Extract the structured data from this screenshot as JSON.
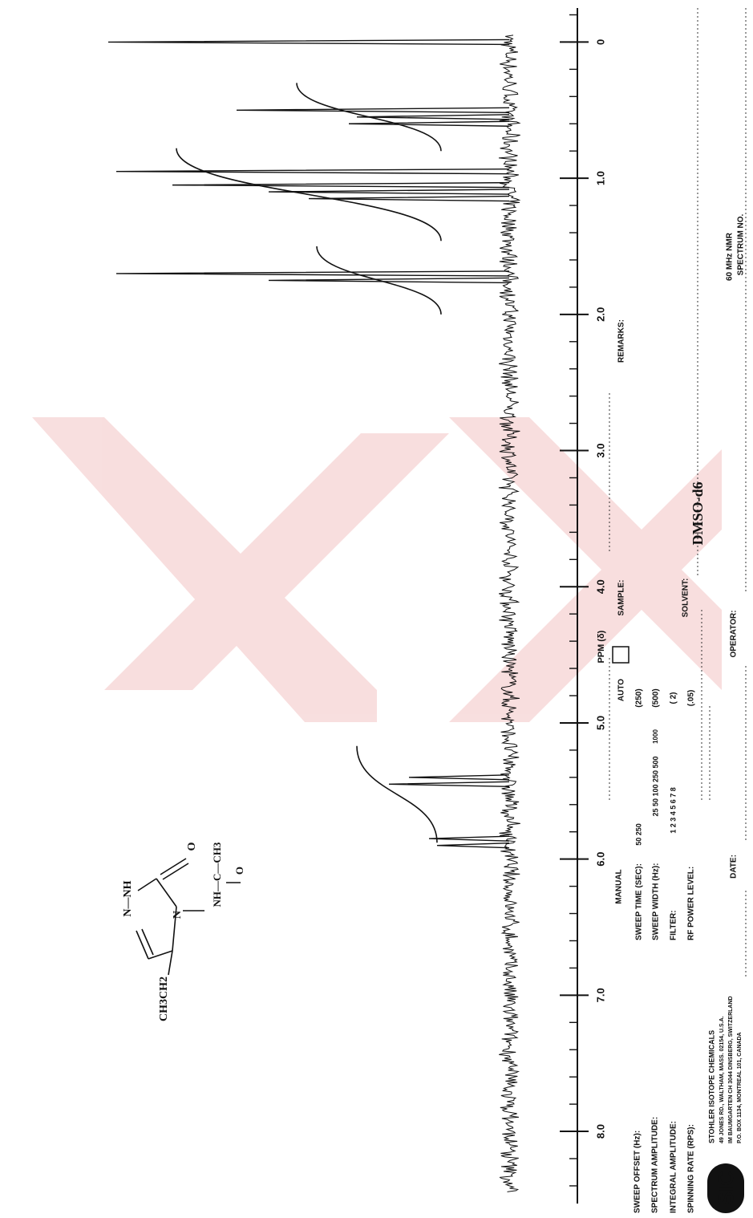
{
  "chart_data": {
    "type": "nmr",
    "x_label": "PPM (δ)",
    "xlim": [
      -0.25,
      8.53
    ],
    "xticks": [
      0,
      {
        "value": 1,
        "label": "1.0"
      },
      {
        "value": 2,
        "label": "2.0"
      },
      {
        "value": 3,
        "label": "3.0"
      },
      {
        "value": 4,
        "label": "4.0"
      },
      {
        "value": 5,
        "label": "5.0"
      },
      {
        "value": 6,
        "label": "6.0"
      },
      {
        "value": 7,
        "label": "7.0"
      },
      {
        "value": 8,
        "label": "8.0"
      }
    ],
    "ylim": [
      0,
      100
    ],
    "color": "#111111",
    "peaks": {
      "x": [
        0,
        0.5,
        0.55,
        0.6,
        0.95,
        1.05,
        1.1,
        1.15,
        1.7,
        1.75,
        5.4,
        5.45,
        5.85,
        5.9
      ],
      "values": [
        100,
        68,
        38,
        40,
        98,
        84,
        60,
        50,
        98,
        60,
        25,
        30,
        20,
        18
      ]
    },
    "integrals": [
      {
        "x": [
          0.3,
          0.8
        ],
        "values": [
          53,
          17
        ]
      },
      {
        "x": [
          0.78,
          1.46
        ],
        "values": [
          83,
          17
        ]
      },
      {
        "x": [
          1.5,
          2.0
        ],
        "values": [
          48,
          17
        ]
      },
      {
        "x": [
          5.17,
          5.88
        ],
        "values": [
          38,
          18
        ]
      }
    ]
  },
  "form": {
    "remarks": "REMARKS:",
    "sample": "SAMPLE:",
    "solvent": "SOLVENT:",
    "solvent_value": "DMSO-d6",
    "operator": "OPERATOR:",
    "date": "DATE:",
    "instrument": "60 MHz NMR",
    "spectrum_no": "SPECTRUM NO.",
    "auto": "AUTO",
    "manual": "MANUAL",
    "sweep_time": "SWEEP TIME (SEC):",
    "sweep_time_value": "(250)",
    "sweep_time_options": "50 250",
    "sweep_width": "SWEEP WIDTH (Hz):",
    "sweep_width_value": "(500)",
    "sweep_width_extra": "1000",
    "sweep_width_options": "25 50 100 250 500",
    "filter": "FILTER:",
    "filter_value": "( 2)",
    "filter_options": "1 2 3 4 5 6 7 8",
    "rf_power": "RF POWER LEVEL:",
    "rf_power_value": "(.05)",
    "sweep_offset": "SWEEP OFFSET (Hz):",
    "spectrum_amplitude": "SPECTRUM AMPLITUDE:",
    "integral_amplitude": "INTEGRAL AMPLITUDE:",
    "spinning_rate": "SPINNING RATE (RPS):",
    "logo": "SIC",
    "company": "STOHLER ISOTOPE CHEMICALS",
    "address": [
      "49 JONES RD., WALTHAM, MASS. 02154, U.S.A.",
      "IM BAUMGARTEN CH 3044 DINSBERG, SWITZERLAND",
      "P.O. BOX 1134, MONTREAL 101, CANADA"
    ]
  },
  "structure": {
    "labels": [
      "N—NH",
      "O",
      "N",
      "CH3CH2",
      "NH—C—CH3",
      "O"
    ]
  }
}
